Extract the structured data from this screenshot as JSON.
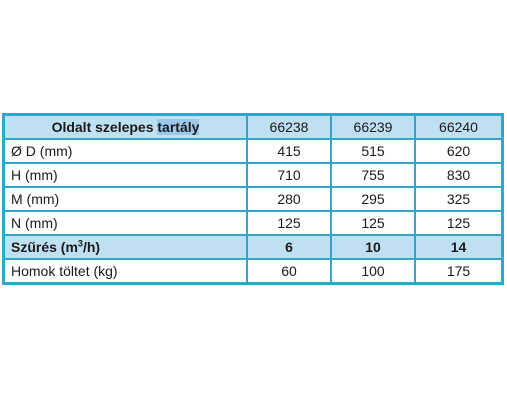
{
  "header": {
    "title_prefix": "Oldalt szelepes ",
    "title_selected": "tartály",
    "models": [
      "66238",
      "66239",
      "66240"
    ]
  },
  "rows": [
    {
      "label": "Ø D (mm)",
      "values": [
        "415",
        "515",
        "620"
      ],
      "highlight": false
    },
    {
      "label": "H (mm)",
      "values": [
        "710",
        "755",
        "830"
      ],
      "highlight": false
    },
    {
      "label": "M (mm)",
      "values": [
        "280",
        "295",
        "325"
      ],
      "highlight": false
    },
    {
      "label": "N (mm)",
      "values": [
        "125",
        "125",
        "125"
      ],
      "highlight": false
    }
  ],
  "filter_row": {
    "label_prefix": "Szűrés (m",
    "label_sup": "3",
    "label_suffix": "/h)",
    "values": [
      "6",
      "10",
      "14"
    ]
  },
  "sand_row": {
    "label": "Homok töltet (kg)",
    "values": [
      "60",
      "100",
      "175"
    ]
  },
  "colors": {
    "border": "#34a4cf",
    "highlight_bg": "#bfe0f3",
    "selection": "#9ec7ee"
  }
}
